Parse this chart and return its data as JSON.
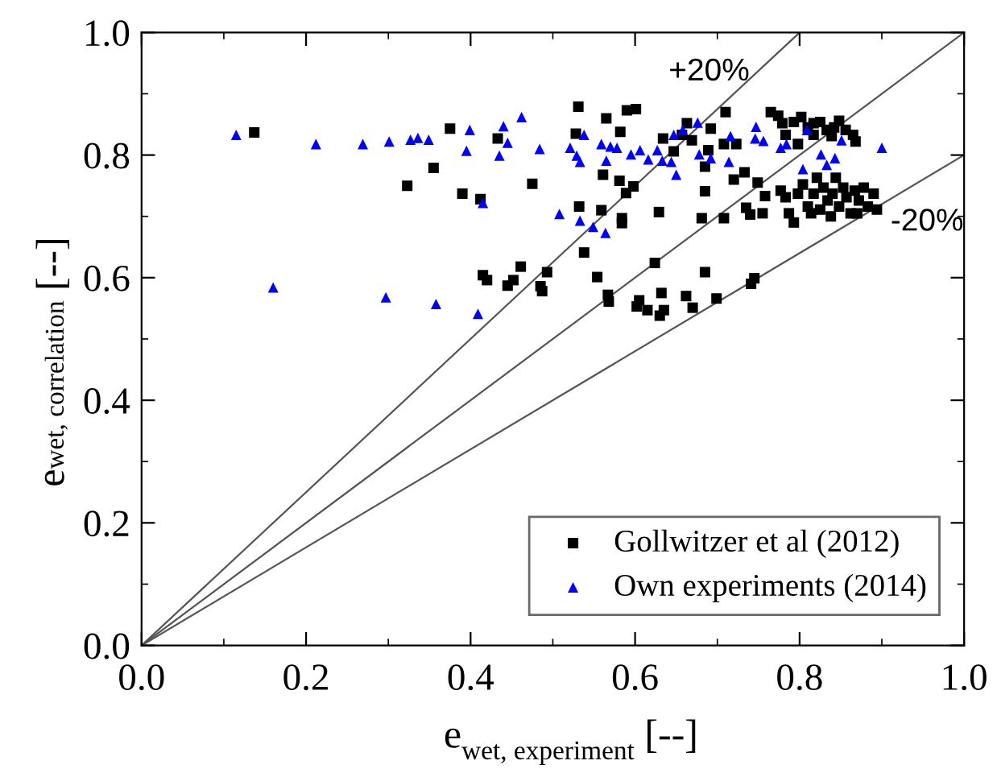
{
  "chart_data": {
    "type": "scatter",
    "xlabel": "e$_{wet, experiment}$ [--]",
    "ylabel": "e$_{wet, correlation}$ [--]",
    "xlim": [
      0,
      1
    ],
    "ylim": [
      0,
      1
    ],
    "xticks": [
      {
        "value": 0,
        "label": "0.0"
      },
      0.2,
      0.4,
      0.6,
      0.8,
      {
        "value": 1,
        "label": "1.0"
      }
    ],
    "yticks": [
      {
        "value": 0,
        "label": "0.0"
      },
      0.2,
      0.4,
      0.6,
      0.8,
      {
        "value": 1,
        "label": "1.0"
      }
    ],
    "grid": false,
    "legend": "bottom right",
    "annotations": [
      "+20%",
      "-20%"
    ],
    "series": [
      {
        "type": "line",
        "color": "#555555",
        "marker": "none",
        "x": [
          0,
          0.8
        ],
        "values": [
          0,
          1
        ]
      },
      {
        "type": "line",
        "color": "#555555",
        "marker": "none",
        "x": [
          0,
          1
        ],
        "values": [
          0,
          1
        ]
      },
      {
        "type": "line",
        "color": "#555555",
        "marker": "none",
        "x": [
          0,
          1
        ],
        "values": [
          0,
          0.8
        ]
      },
      {
        "name": "Gollwitzer et al (2012)",
        "color": "#000000",
        "marker": "square",
        "x": [
          0.137,
          0.323,
          0.355,
          0.375,
          0.39,
          0.412,
          0.433,
          0.475,
          0.415,
          0.42,
          0.445,
          0.452,
          0.461,
          0.485,
          0.487,
          0.493,
          0.531,
          0.528,
          0.532,
          0.538,
          0.554,
          0.559,
          0.561,
          0.565,
          0.567,
          0.568,
          0.581,
          0.582,
          0.584,
          0.584,
          0.59,
          0.589,
          0.598,
          0.601,
          0.602,
          0.605,
          0.615,
          0.63,
          0.635,
          0.632,
          0.624,
          0.629,
          0.634,
          0.647,
          0.657,
          0.663,
          0.669,
          0.67,
          0.662,
          0.685,
          0.699,
          0.741,
          0.745,
          0.681,
          0.685,
          0.685,
          0.689,
          0.692,
          0.71,
          0.708,
          0.708,
          0.72,
          0.723,
          0.733,
          0.735,
          0.74,
          0.749,
          0.755,
          0.758,
          0.765,
          0.774,
          0.779,
          0.783,
          0.793,
          0.802,
          0.81,
          0.817,
          0.825,
          0.833,
          0.839,
          0.848,
          0.856,
          0.865,
          0.868,
          0.798,
          0.817,
          0.842,
          0.777,
          0.783,
          0.793,
          0.798,
          0.804,
          0.81,
          0.817,
          0.821,
          0.825,
          0.829,
          0.834,
          0.84,
          0.844,
          0.848,
          0.853,
          0.857,
          0.862,
          0.867,
          0.872,
          0.878,
          0.883,
          0.89,
          0.894,
          0.787,
          0.814,
          0.838,
          0.87
        ],
        "values": [
          0.837,
          0.75,
          0.779,
          0.843,
          0.737,
          0.728,
          0.827,
          0.753,
          0.604,
          0.596,
          0.587,
          0.596,
          0.618,
          0.586,
          0.578,
          0.609,
          0.879,
          0.835,
          0.716,
          0.641,
          0.601,
          0.71,
          0.768,
          0.86,
          0.572,
          0.561,
          0.758,
          0.838,
          0.697,
          0.689,
          0.873,
          0.738,
          0.749,
          0.875,
          0.553,
          0.563,
          0.547,
          0.538,
          0.547,
          0.575,
          0.624,
          0.707,
          0.827,
          0.806,
          0.833,
          0.852,
          0.824,
          0.551,
          0.57,
          0.609,
          0.566,
          0.59,
          0.599,
          0.697,
          0.741,
          0.781,
          0.808,
          0.843,
          0.87,
          0.818,
          0.697,
          0.76,
          0.818,
          0.772,
          0.714,
          0.703,
          0.755,
          0.705,
          0.733,
          0.87,
          0.864,
          0.852,
          0.833,
          0.854,
          0.862,
          0.845,
          0.833,
          0.854,
          0.841,
          0.831,
          0.856,
          0.841,
          0.833,
          0.822,
          0.818,
          0.852,
          0.845,
          0.742,
          0.731,
          0.69,
          0.737,
          0.752,
          0.716,
          0.737,
          0.763,
          0.711,
          0.747,
          0.726,
          0.737,
          0.763,
          0.716,
          0.747,
          0.731,
          0.705,
          0.742,
          0.726,
          0.747,
          0.716,
          0.737,
          0.711,
          0.705,
          0.705,
          0.7,
          0.705
        ]
      },
      {
        "name": "Own experiments (2014)",
        "color": "#0000ff",
        "marker": "triangle",
        "x": [
          0.115,
          0.212,
          0.269,
          0.301,
          0.327,
          0.336,
          0.349,
          0.399,
          0.395,
          0.44,
          0.445,
          0.435,
          0.462,
          0.484,
          0.415,
          0.16,
          0.297,
          0.358,
          0.409,
          0.508,
          0.533,
          0.549,
          0.564,
          0.521,
          0.529,
          0.533,
          0.538,
          0.559,
          0.57,
          0.578,
          0.565,
          0.595,
          0.606,
          0.616,
          0.627,
          0.633,
          0.644,
          0.65,
          0.647,
          0.658,
          0.676,
          0.678,
          0.692,
          0.714,
          0.716,
          0.747,
          0.746,
          0.756,
          0.777,
          0.784,
          0.804,
          0.809,
          0.826,
          0.833,
          0.843,
          0.851,
          0.9
        ],
        "values": [
          0.833,
          0.818,
          0.818,
          0.822,
          0.825,
          0.828,
          0.825,
          0.841,
          0.807,
          0.847,
          0.82,
          0.799,
          0.862,
          0.81,
          0.722,
          0.584,
          0.568,
          0.557,
          0.541,
          0.704,
          0.693,
          0.683,
          0.673,
          0.812,
          0.799,
          0.789,
          0.833,
          0.818,
          0.814,
          0.812,
          0.791,
          0.801,
          0.808,
          0.793,
          0.808,
          0.791,
          0.789,
          0.768,
          0.833,
          0.841,
          0.853,
          0.801,
          0.795,
          0.789,
          0.831,
          0.846,
          0.827,
          0.823,
          0.812,
          0.818,
          0.777,
          0.841,
          0.801,
          0.784,
          0.795,
          0.824,
          0.812
        ]
      }
    ]
  }
}
